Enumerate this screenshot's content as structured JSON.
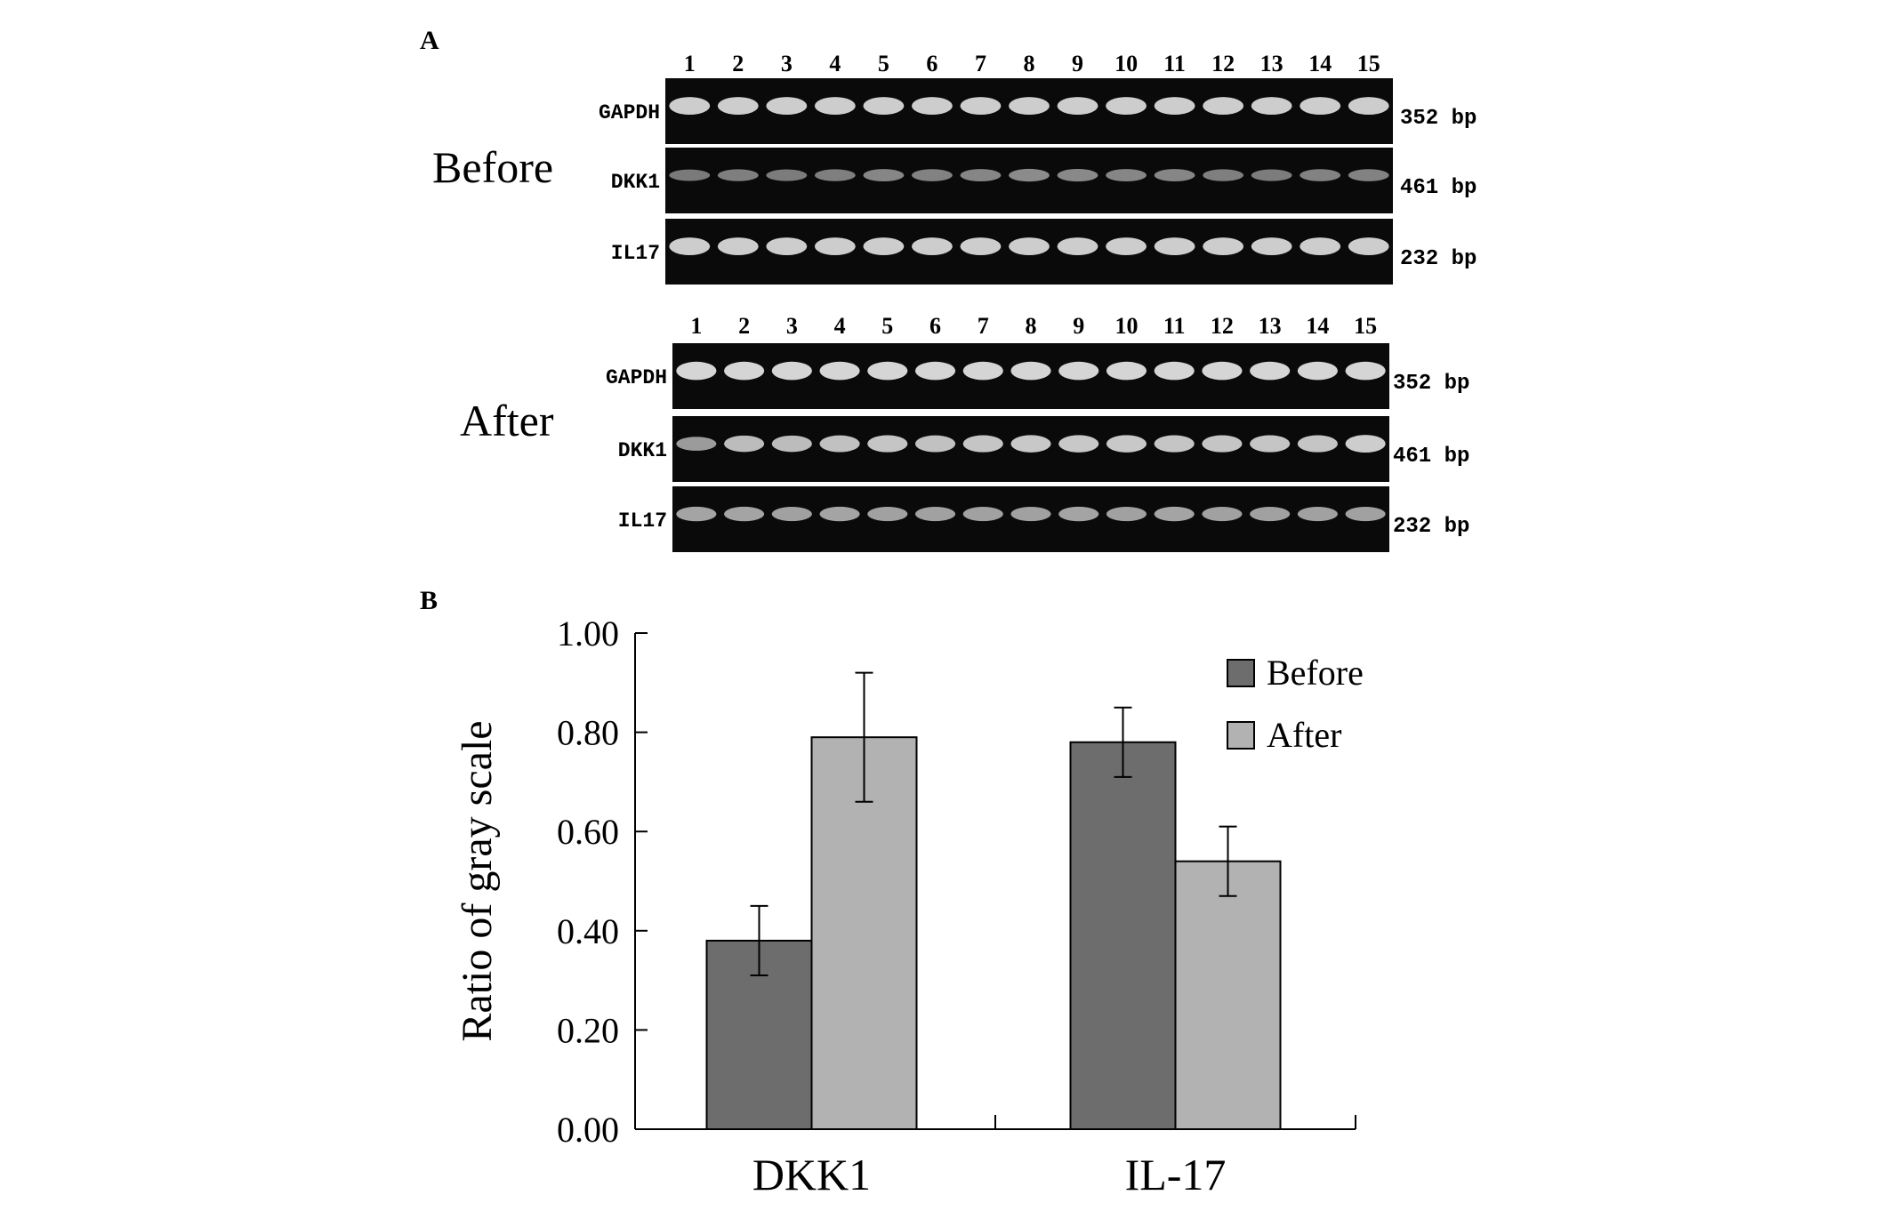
{
  "panel_a": {
    "label": "A",
    "lane_labels": [
      "1",
      "2",
      "3",
      "4",
      "5",
      "6",
      "7",
      "8",
      "9",
      "10",
      "11",
      "12",
      "13",
      "14",
      "15"
    ],
    "groups": [
      {
        "name": "Before",
        "genes": [
          {
            "name": "GAPDH",
            "size": "352 bp",
            "band_intensity": [
              0.85,
              0.85,
              0.85,
              0.85,
              0.85,
              0.85,
              0.85,
              0.85,
              0.85,
              0.85,
              0.85,
              0.85,
              0.85,
              0.85,
              0.85
            ]
          },
          {
            "name": "DKK1",
            "size": "461 bp",
            "band_intensity": [
              0.35,
              0.38,
              0.36,
              0.38,
              0.42,
              0.4,
              0.42,
              0.45,
              0.44,
              0.42,
              0.42,
              0.38,
              0.36,
              0.4,
              0.4
            ]
          },
          {
            "name": "IL17",
            "size": "232 bp",
            "band_intensity": [
              0.85,
              0.85,
              0.85,
              0.85,
              0.85,
              0.85,
              0.85,
              0.85,
              0.85,
              0.85,
              0.85,
              0.85,
              0.85,
              0.85,
              0.85
            ]
          }
        ]
      },
      {
        "name": "After",
        "genes": [
          {
            "name": "GAPDH",
            "size": "352 bp",
            "band_intensity": [
              0.9,
              0.9,
              0.9,
              0.9,
              0.9,
              0.9,
              0.9,
              0.9,
              0.9,
              0.9,
              0.9,
              0.9,
              0.9,
              0.9,
              0.9
            ]
          },
          {
            "name": "DKK1",
            "size": "461 bp",
            "band_intensity": [
              0.55,
              0.75,
              0.75,
              0.78,
              0.8,
              0.78,
              0.8,
              0.82,
              0.82,
              0.82,
              0.8,
              0.8,
              0.8,
              0.8,
              0.85
            ]
          },
          {
            "name": "IL17",
            "size": "232 bp",
            "band_intensity": [
              0.6,
              0.6,
              0.58,
              0.6,
              0.58,
              0.58,
              0.58,
              0.58,
              0.6,
              0.58,
              0.6,
              0.58,
              0.58,
              0.58,
              0.58
            ]
          }
        ]
      }
    ]
  },
  "panel_b": {
    "label": "B"
  },
  "colors": {
    "before": "#6d6d6d",
    "after": "#b2b2b2",
    "gel": "#0a0a0a",
    "band": "#e6e6e6"
  },
  "chart_data": {
    "type": "bar",
    "categories": [
      "DKK1",
      "IL-17"
    ],
    "series": [
      {
        "name": "Before",
        "values": [
          0.38,
          0.78
        ],
        "errors": [
          0.07,
          0.07
        ]
      },
      {
        "name": "After",
        "values": [
          0.79,
          0.54
        ],
        "errors": [
          0.13,
          0.07
        ]
      }
    ],
    "ylabel": "Ratio of gray scale",
    "xlabel": "",
    "ylim": [
      0,
      1.0
    ],
    "yticks": [
      "0.00",
      "0.20",
      "0.40",
      "0.60",
      "0.80",
      "1.00"
    ],
    "ytick_values": [
      0,
      0.2,
      0.4,
      0.6,
      0.8,
      1.0
    ],
    "legend": "top-right",
    "grid": false
  }
}
